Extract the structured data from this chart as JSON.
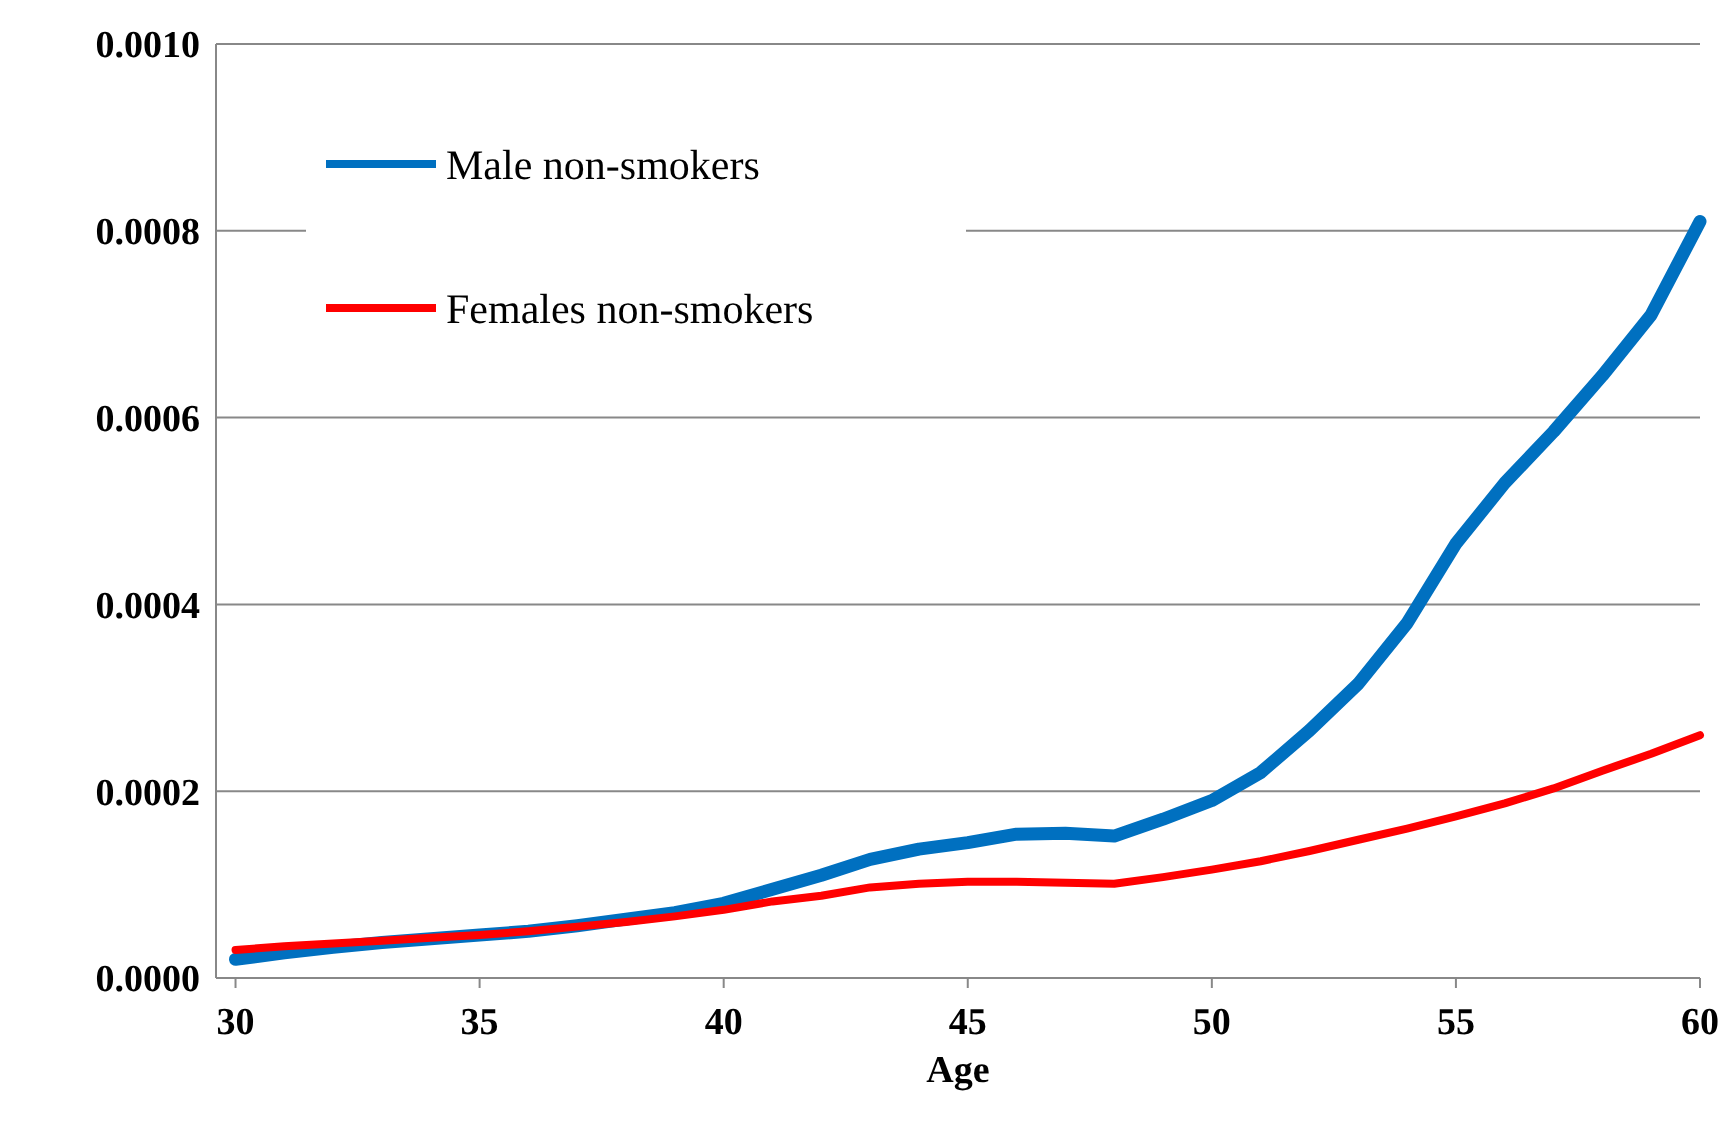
{
  "chart_data": {
    "type": "line",
    "xlabel": "Age",
    "x": [
      30,
      31,
      32,
      33,
      34,
      35,
      36,
      37,
      38,
      39,
      40,
      41,
      42,
      43,
      44,
      45,
      46,
      47,
      48,
      49,
      50,
      51,
      52,
      53,
      54,
      55,
      56,
      57,
      58,
      59,
      60
    ],
    "series": [
      {
        "name": "Male non-smokers",
        "color": "#0070c0",
        "values": [
          2e-05,
          2.7e-05,
          3.3e-05,
          3.8e-05,
          4.2e-05,
          4.6e-05,
          5e-05,
          5.6e-05,
          6.3e-05,
          7e-05,
          8e-05,
          9.5e-05,
          0.00011,
          0.000127,
          0.000138,
          0.000145,
          0.000154,
          0.000155,
          0.000152,
          0.00017,
          0.00019,
          0.00022,
          0.000265,
          0.000315,
          0.00038,
          0.000465,
          0.00053,
          0.000585,
          0.000645,
          0.00071,
          0.00081
        ]
      },
      {
        "name": "Females non-smokers",
        "color": "#ff0000",
        "values": [
          3e-05,
          3.4e-05,
          3.7e-05,
          4e-05,
          4.3e-05,
          4.6e-05,
          5e-05,
          5.5e-05,
          6e-05,
          6.6e-05,
          7.3e-05,
          8.2e-05,
          8.8e-05,
          9.7e-05,
          0.000101,
          0.000103,
          0.000103,
          0.000102,
          0.000101,
          0.000108,
          0.000116,
          0.000125,
          0.000136,
          0.000148,
          0.00016,
          0.000173,
          0.000187,
          0.000203,
          0.000222,
          0.00024,
          0.00026
        ]
      }
    ],
    "xlim": [
      29.6,
      60
    ],
    "xticks": [
      30,
      35,
      40,
      45,
      50,
      55,
      60
    ],
    "ylim": [
      0,
      0.001
    ],
    "yticks": [
      {
        "value": 0,
        "label": "0.0000"
      },
      {
        "value": 0.0002,
        "label": "0.0002"
      },
      {
        "value": 0.0004,
        "label": "0.0004"
      },
      {
        "value": 0.0006,
        "label": "0.0006"
      },
      {
        "value": 0.0008,
        "label": "0.0008"
      },
      {
        "value": 0.001,
        "label": "0.0010"
      }
    ],
    "grid": "y",
    "legend": "top left",
    "marker": "none",
    "line_style": "solid"
  }
}
